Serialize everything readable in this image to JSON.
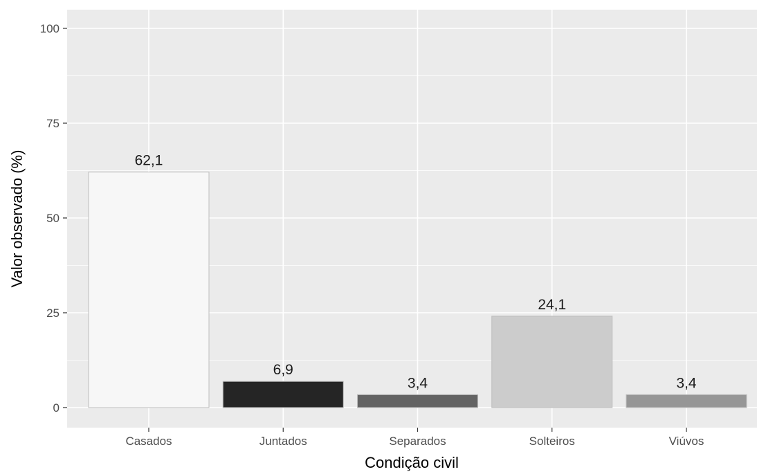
{
  "chart_data": {
    "type": "bar",
    "categories": [
      "Casados",
      "Juntados",
      "Separados",
      "Solteiros",
      "Viúvos"
    ],
    "values": [
      62.1,
      6.9,
      3.4,
      24.1,
      3.4
    ],
    "value_labels": [
      "62,1",
      "6,9",
      "3,4",
      "24,1",
      "3,4"
    ],
    "bar_colors": [
      "#f7f7f7",
      "#252525",
      "#636363",
      "#cccccc",
      "#969696"
    ],
    "bar_outline": "#bdbdbd",
    "xlabel": "Condição civil",
    "ylabel": "Valor observado (%)",
    "ylim": [
      0,
      100
    ],
    "yticks": [
      0,
      25,
      50,
      75,
      100
    ],
    "ytick_labels": [
      "0",
      "25",
      "50",
      "75",
      "100"
    ],
    "grid": true,
    "panel_background": "#ebebeb",
    "gridline_color": "#ffffff"
  }
}
